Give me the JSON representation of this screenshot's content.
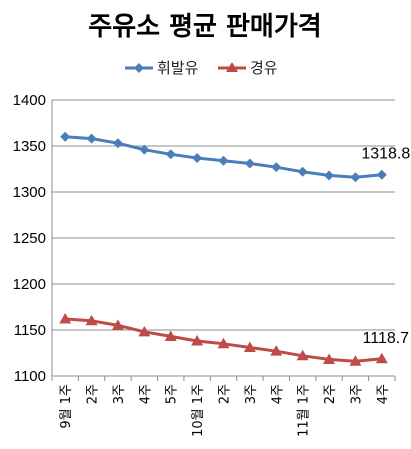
{
  "chart_data": {
    "type": "line",
    "title": "주유소 평균 판매가격",
    "categories": [
      "9월 1주",
      "2주",
      "3주",
      "4주",
      "5주",
      "10월 1주",
      "2주",
      "3주",
      "4주",
      "11월 1주",
      "2주",
      "3주",
      "4주"
    ],
    "series": [
      {
        "name": "휘발유",
        "color": "#4a7ebb",
        "marker": "diamond",
        "values": [
          1360,
          1358,
          1353,
          1346,
          1341,
          1337,
          1334,
          1331,
          1327,
          1322,
          1318,
          1316,
          1318.8
        ]
      },
      {
        "name": "경유",
        "color": "#be4b48",
        "marker": "triangle",
        "values": [
          1162,
          1160,
          1155,
          1148,
          1143,
          1138,
          1135,
          1131,
          1127,
          1122,
          1118,
          1116,
          1118.7
        ]
      }
    ],
    "data_labels": [
      "1318.8",
      "1118.7"
    ],
    "ylim": [
      1100,
      1400
    ],
    "yticks": [
      "1400",
      "1350",
      "1300",
      "1250",
      "1200",
      "1150",
      "1100"
    ],
    "grid": true,
    "legend": "top-center"
  }
}
